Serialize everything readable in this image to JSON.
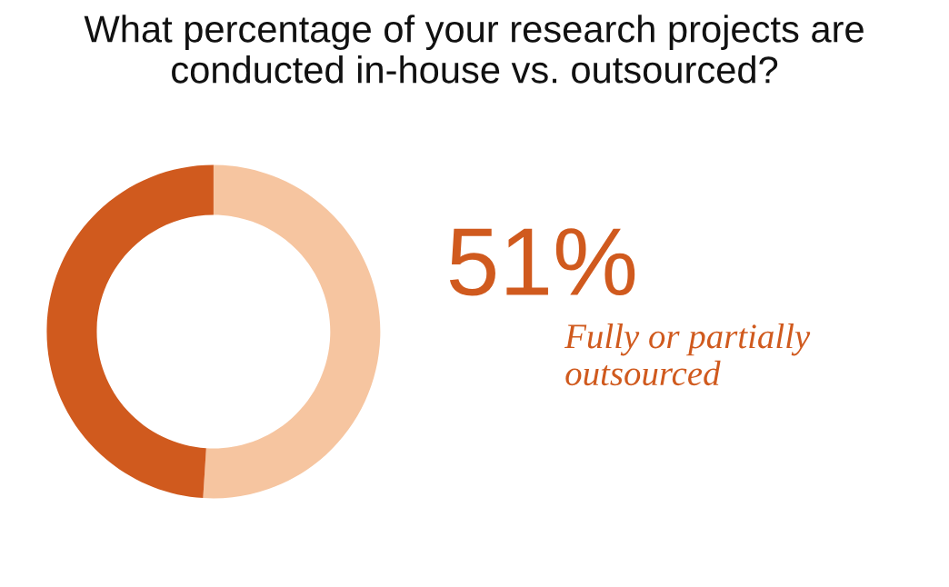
{
  "chart_data": {
    "type": "donut",
    "title": "What percentage of your research projects are conducted in-house vs. outsourced?",
    "categories": [
      "Fully or partially outsourced",
      null
    ],
    "values": [
      51,
      49
    ],
    "colors": [
      "#f6c5a0",
      "#d05a1e"
    ],
    "value_labels": [
      "51%",
      null
    ]
  }
}
